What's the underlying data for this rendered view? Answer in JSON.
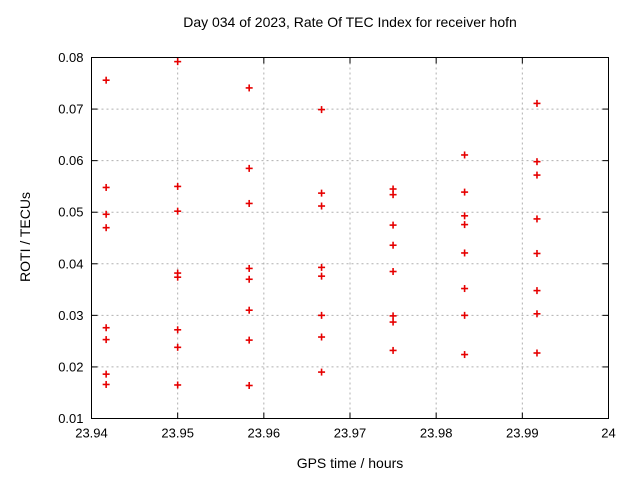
{
  "window": {
    "background": "#ffffff"
  },
  "chart_data": {
    "type": "scatter",
    "title": "Day 034 of 2023, Rate Of TEC Index for receiver hofn",
    "xlabel": "GPS time / hours",
    "ylabel": "ROTI / TECUs",
    "xlim": [
      23.94,
      24
    ],
    "ylim": [
      0.01,
      0.08
    ],
    "grid": true,
    "grid_style": "dashed",
    "legend_position": "none",
    "marker": {
      "shape": "plus",
      "color": "#e60000",
      "half_size": 3.5,
      "stroke_width": 1.6
    },
    "axis_color": "#000000",
    "grid_color": "#b0b0b0",
    "xticks": [
      {
        "v": 23.94,
        "label": "23.94"
      },
      {
        "v": 23.95,
        "label": "23.95"
      },
      {
        "v": 23.96,
        "label": "23.96"
      },
      {
        "v": 23.97,
        "label": "23.97"
      },
      {
        "v": 23.98,
        "label": "23.98"
      },
      {
        "v": 23.99,
        "label": "23.99"
      },
      {
        "v": 24,
        "label": "24"
      }
    ],
    "yticks": [
      {
        "v": 0.01,
        "label": "0.01"
      },
      {
        "v": 0.02,
        "label": "0.02"
      },
      {
        "v": 0.03,
        "label": "0.03"
      },
      {
        "v": 0.04,
        "label": "0.04"
      },
      {
        "v": 0.05,
        "label": "0.05"
      },
      {
        "v": 0.06,
        "label": "0.06"
      },
      {
        "v": 0.07,
        "label": "0.07"
      },
      {
        "v": 0.08,
        "label": "0.08"
      }
    ],
    "series": [
      {
        "name": "ROTI",
        "points": [
          [
            23.9417,
            0.0756
          ],
          [
            23.9417,
            0.0548
          ],
          [
            23.9417,
            0.0496
          ],
          [
            23.9417,
            0.047
          ],
          [
            23.9417,
            0.0276
          ],
          [
            23.9417,
            0.0253
          ],
          [
            23.9417,
            0.0186
          ],
          [
            23.9417,
            0.0166
          ],
          [
            23.95,
            0.0792
          ],
          [
            23.95,
            0.055
          ],
          [
            23.95,
            0.0502
          ],
          [
            23.95,
            0.0382
          ],
          [
            23.95,
            0.0374
          ],
          [
            23.95,
            0.0272
          ],
          [
            23.95,
            0.0238
          ],
          [
            23.95,
            0.0165
          ],
          [
            23.9583,
            0.0741
          ],
          [
            23.9583,
            0.0585
          ],
          [
            23.9583,
            0.0517
          ],
          [
            23.9583,
            0.0391
          ],
          [
            23.9583,
            0.037
          ],
          [
            23.9583,
            0.031
          ],
          [
            23.9583,
            0.0252
          ],
          [
            23.9583,
            0.0164
          ],
          [
            23.9667,
            0.0699
          ],
          [
            23.9667,
            0.0537
          ],
          [
            23.9667,
            0.0512
          ],
          [
            23.9667,
            0.0393
          ],
          [
            23.9667,
            0.0376
          ],
          [
            23.9667,
            0.03
          ],
          [
            23.9667,
            0.0258
          ],
          [
            23.9667,
            0.019
          ],
          [
            23.975,
            0.0545
          ],
          [
            23.975,
            0.0534
          ],
          [
            23.975,
            0.0475
          ],
          [
            23.975,
            0.0436
          ],
          [
            23.975,
            0.0385
          ],
          [
            23.975,
            0.0299
          ],
          [
            23.975,
            0.0287
          ],
          [
            23.975,
            0.0232
          ],
          [
            23.9833,
            0.0611
          ],
          [
            23.9833,
            0.0539
          ],
          [
            23.9833,
            0.0493
          ],
          [
            23.9833,
            0.0476
          ],
          [
            23.9833,
            0.0421
          ],
          [
            23.9833,
            0.0352
          ],
          [
            23.9833,
            0.03
          ],
          [
            23.9833,
            0.0224
          ],
          [
            23.9917,
            0.0711
          ],
          [
            23.9917,
            0.0598
          ],
          [
            23.9917,
            0.0572
          ],
          [
            23.9917,
            0.0487
          ],
          [
            23.9917,
            0.042
          ],
          [
            23.9917,
            0.0348
          ],
          [
            23.9917,
            0.0303
          ],
          [
            23.9917,
            0.0227
          ]
        ]
      }
    ]
  }
}
